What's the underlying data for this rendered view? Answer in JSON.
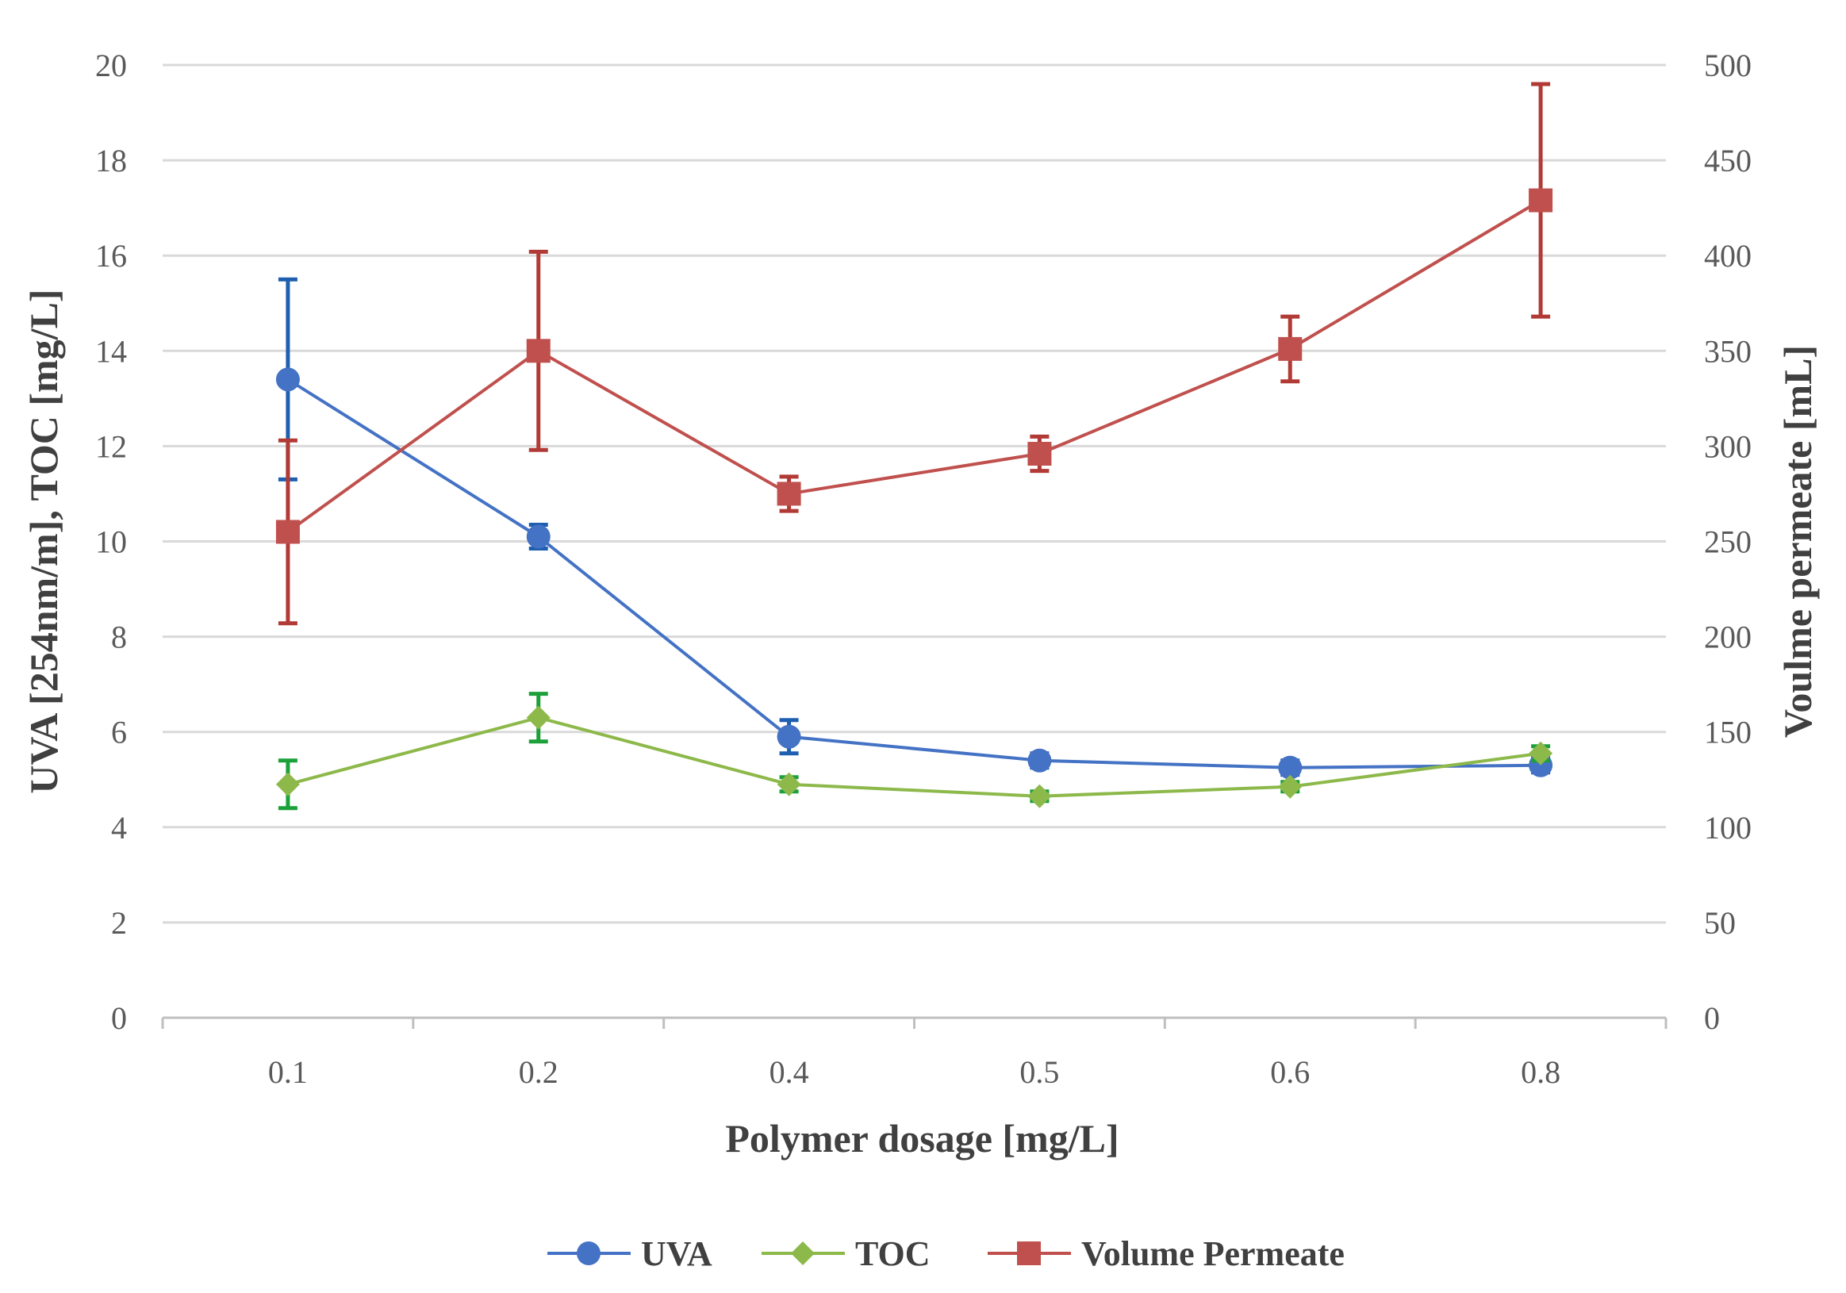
{
  "chart_data": {
    "type": "line",
    "categories": [
      "0.1",
      "0.2",
      "0.4",
      "0.5",
      "0.6",
      "0.8"
    ],
    "xlabel": "Polymer dosage [mg/L]",
    "ylabel": "UVA [254nm/m], TOC [mg/L]",
    "y2label": "Voulme permeate [mL]",
    "ylim": [
      0,
      20
    ],
    "yticks": [
      "0",
      "2",
      "4",
      "6",
      "8",
      "10",
      "12",
      "14",
      "16",
      "18",
      "20"
    ],
    "y2lim": [
      0,
      500
    ],
    "y2ticks": [
      "0",
      "50",
      "100",
      "150",
      "200",
      "250",
      "300",
      "350",
      "400",
      "450",
      "500"
    ],
    "grid": true,
    "legend_position": "bottom",
    "series": [
      {
        "name": "UVA",
        "axis": "left",
        "marker": "circle",
        "color": "#4472C4",
        "error_color": "#1F5FB0",
        "values": [
          13.4,
          10.1,
          5.9,
          5.4,
          5.25,
          5.3
        ],
        "errors": [
          2.1,
          0.25,
          0.35,
          0.15,
          0.15,
          0.15
        ]
      },
      {
        "name": "TOC",
        "axis": "left",
        "marker": "diamond",
        "color": "#8DB84A",
        "error_color": "#1BA03A",
        "values": [
          4.9,
          6.3,
          4.9,
          4.65,
          4.85,
          5.55
        ],
        "errors": [
          0.5,
          0.5,
          0.15,
          0.1,
          0.1,
          0.15
        ]
      },
      {
        "name": "Volume Permeate",
        "axis": "right",
        "marker": "square",
        "color": "#C0504D",
        "error_color": "#B13A36",
        "values": [
          255,
          350,
          275,
          296,
          351,
          429
        ],
        "errors": [
          48,
          52,
          9,
          9,
          17,
          61
        ]
      }
    ]
  }
}
